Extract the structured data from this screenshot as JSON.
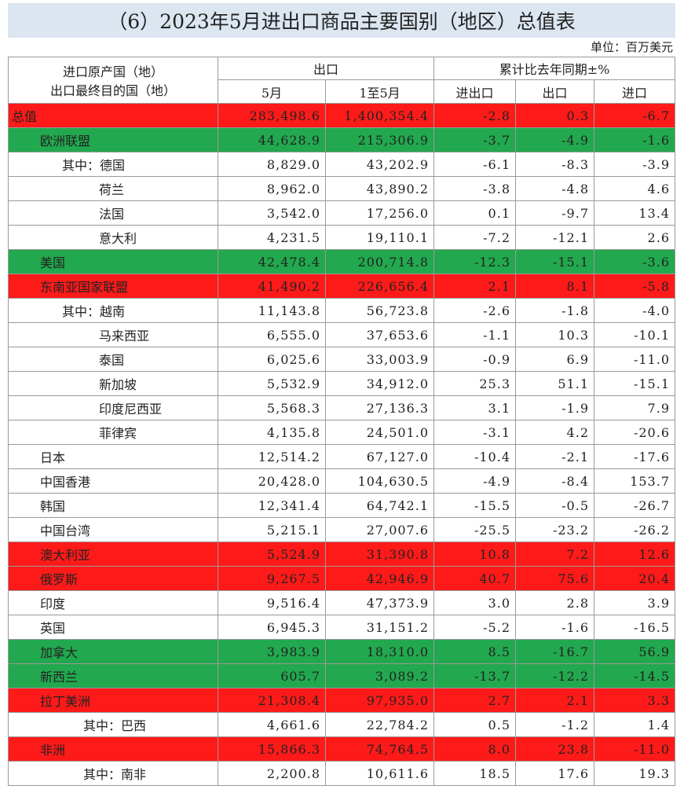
{
  "header": {
    "title": "（6）2023年5月进出口商品主要国别（地区）总值表",
    "unit": "单位：百万美元"
  },
  "table": {
    "columns": {
      "label": [
        "进口原产国（地）",
        "出口最终目的国（地）"
      ],
      "group1": "出口",
      "group2": "累计比去年同期±%",
      "sub": [
        "5月",
        "1至5月",
        "进出口",
        "出口",
        "进口"
      ]
    },
    "rows": [
      {
        "cells": [
          "总值",
          "283,498.6",
          "1,400,354.4",
          "-2.8",
          "0.3",
          "-6.7"
        ],
        "fill": "#ff1a1a"
      },
      {
        "cells": [
          "欧洲联盟",
          "44,628.9",
          "215,306.9",
          "-3.7",
          "-4.9",
          "-1.6"
        ],
        "fill": "#22a84e"
      },
      {
        "cells": [
          "其中：德国",
          "8,829.0",
          "43,202.9",
          "-6.1",
          "-8.3",
          "-3.9"
        ]
      },
      {
        "cells": [
          "荷兰",
          "8,962.0",
          "43,890.2",
          "-3.8",
          "-4.8",
          "4.6"
        ]
      },
      {
        "cells": [
          "法国",
          "3,542.0",
          "17,256.0",
          "0.1",
          "-9.7",
          "13.4"
        ]
      },
      {
        "cells": [
          "意大利",
          "4,231.5",
          "19,110.1",
          "-7.2",
          "-12.1",
          "2.6"
        ]
      },
      {
        "cells": [
          "美国",
          "42,478.4",
          "200,714.8",
          "-12.3",
          "-15.1",
          "-3.6"
        ],
        "fill": "#22a84e"
      },
      {
        "cells": [
          "东南亚国家联盟",
          "41,490.2",
          "226,656.4",
          "2.1",
          "8.1",
          "-5.8"
        ],
        "fill": "#ff1a1a"
      },
      {
        "cells": [
          "其中：越南",
          "11,143.8",
          "56,723.8",
          "-2.6",
          "-1.8",
          "-4.0"
        ]
      },
      {
        "cells": [
          "马来西亚",
          "6,555.0",
          "37,653.6",
          "-1.1",
          "10.3",
          "-10.1"
        ]
      },
      {
        "cells": [
          "泰国",
          "6,025.6",
          "33,003.9",
          "-0.9",
          "6.9",
          "-11.0"
        ]
      },
      {
        "cells": [
          "新加坡",
          "5,532.9",
          "34,912.0",
          "25.3",
          "51.1",
          "-15.1"
        ]
      },
      {
        "cells": [
          "印度尼西亚",
          "5,568.3",
          "27,136.3",
          "3.1",
          "-1.9",
          "7.9"
        ]
      },
      {
        "cells": [
          "菲律宾",
          "4,135.8",
          "24,501.0",
          "-3.1",
          "4.2",
          "-20.6"
        ]
      },
      {
        "cells": [
          "日本",
          "12,514.2",
          "67,127.0",
          "-10.4",
          "-2.1",
          "-17.6"
        ]
      },
      {
        "cells": [
          "中国香港",
          "20,428.0",
          "104,630.5",
          "-4.9",
          "-8.4",
          "153.7"
        ]
      },
      {
        "cells": [
          "韩国",
          "12,341.4",
          "64,742.1",
          "-15.5",
          "-0.5",
          "-26.7"
        ]
      },
      {
        "cells": [
          "中国台湾",
          "5,215.1",
          "27,007.6",
          "-25.5",
          "-23.2",
          "-26.2"
        ]
      },
      {
        "cells": [
          "澳大利亚",
          "5,524.9",
          "31,390.8",
          "10.8",
          "7.2",
          "12.6"
        ],
        "fill": "#ff1a1a"
      },
      {
        "cells": [
          "俄罗斯",
          "9,267.5",
          "42,946.9",
          "40.7",
          "75.6",
          "20.4"
        ],
        "fill": "#ff1a1a"
      },
      {
        "cells": [
          "印度",
          "9,516.4",
          "47,373.9",
          "3.0",
          "2.8",
          "3.9"
        ]
      },
      {
        "cells": [
          "英国",
          "6,945.3",
          "31,151.2",
          "-5.2",
          "-1.6",
          "-16.5"
        ]
      },
      {
        "cells": [
          "加拿大",
          "3,983.9",
          "18,310.0",
          "8.5",
          "-16.7",
          "56.9"
        ],
        "fill": "#22a84e"
      },
      {
        "cells": [
          "新西兰",
          "605.7",
          "3,089.2",
          "-13.7",
          "-12.2",
          "-14.5"
        ],
        "fill": "#22a84e"
      },
      {
        "cells": [
          "拉丁美洲",
          "21,308.4",
          "97,935.0",
          "2.7",
          "2.1",
          "3.3"
        ],
        "fill": "#ff1a1a"
      },
      {
        "cells": [
          "其中：巴西",
          "4,661.6",
          "22,784.2",
          "0.5",
          "-1.2",
          "1.4"
        ]
      },
      {
        "cells": [
          "非洲",
          "15,866.3",
          "74,764.5",
          "8.0",
          "23.8",
          "-11.0"
        ],
        "fill": "#ff1a1a"
      },
      {
        "cells": [
          "其中：南非",
          "2,200.8",
          "10,611.6",
          "18.5",
          "17.6",
          "19.3"
        ]
      }
    ]
  }
}
